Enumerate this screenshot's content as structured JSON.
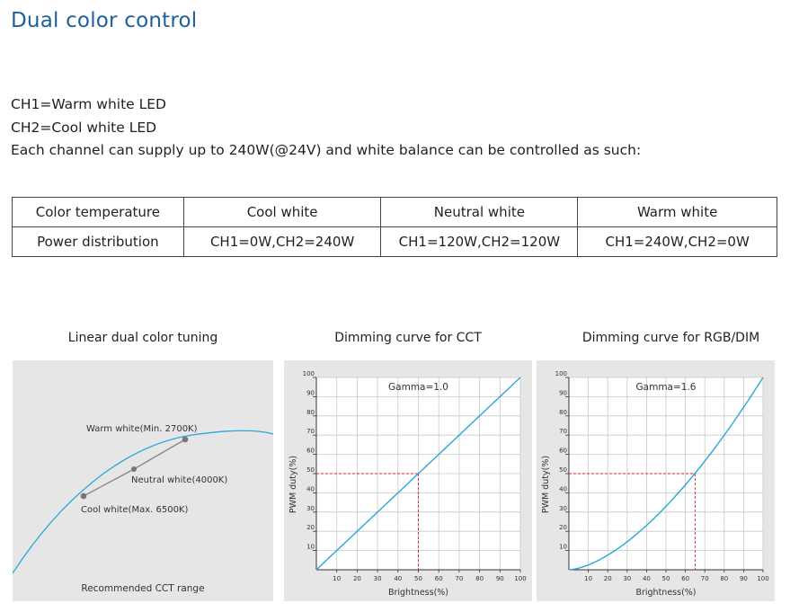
{
  "page": {
    "title": "Dual color control",
    "intro_lines": [
      "CH1=Warm white LED",
      "CH2=Cool white LED",
      "Each channel can supply up to 240W(@24V) and white balance can be controlled as such:"
    ]
  },
  "table": {
    "rows": [
      [
        "Color temperature",
        "Cool white",
        "Neutral white",
        "Warm white"
      ],
      [
        "Power distribution",
        "CH1=0W,CH2=240W",
        "CH1=120W,CH2=120W",
        "CH1=240W,CH2=0W"
      ]
    ]
  },
  "tuning": {
    "title": "Linear dual color tuning",
    "points": [
      "Warm white(Min. 2700K)",
      "Neutral white(4000K)",
      "Cool white(Max. 6500K)"
    ],
    "caption": "Recommended CCT range",
    "colors": {
      "curve": "#2aa6dc",
      "line": "#888888",
      "point": "#777777"
    }
  },
  "chart_data": [
    {
      "type": "line",
      "title": "Dimming curve for CCT",
      "annotation": "Gamma=1.0",
      "xlabel": "Brightness(%)",
      "ylabel": "PWM duty(%)",
      "xlim": [
        0,
        100
      ],
      "ylim": [
        0,
        100
      ],
      "xticks": [
        10,
        20,
        30,
        40,
        50,
        60,
        70,
        80,
        90,
        100
      ],
      "yticks": [
        10,
        20,
        30,
        40,
        50,
        60,
        70,
        80,
        90,
        100
      ],
      "gamma": 1.0,
      "series": [
        {
          "x": [
            0,
            10,
            20,
            30,
            40,
            50,
            60,
            70,
            80,
            90,
            100
          ],
          "values": [
            0,
            10,
            20,
            30,
            40,
            50,
            60,
            70,
            80,
            90,
            100
          ]
        }
      ],
      "reference": {
        "x": 50,
        "y": 50
      },
      "grid": true,
      "colors": {
        "curve": "#2aa6dc",
        "reference": "#d9262b"
      }
    },
    {
      "type": "line",
      "title": "Dimming curve for RGB/DIM",
      "annotation": "Gamma=1.6",
      "xlabel": "Brightness(%)",
      "ylabel": "PWM duty(%)",
      "xlim": [
        0,
        100
      ],
      "ylim": [
        0,
        100
      ],
      "xticks": [
        10,
        20,
        30,
        40,
        50,
        60,
        70,
        80,
        90,
        100
      ],
      "yticks": [
        10,
        20,
        30,
        40,
        50,
        60,
        70,
        80,
        90,
        100
      ],
      "gamma": 1.6,
      "series": [
        {
          "x": [
            0,
            10,
            20,
            30,
            40,
            50,
            60,
            70,
            80,
            90,
            100
          ],
          "values": [
            0,
            2.5,
            7.6,
            14.6,
            23.1,
            33.0,
            44.2,
            56.5,
            70.0,
            84.5,
            100
          ]
        }
      ],
      "reference": {
        "x": 65,
        "y": 50
      },
      "grid": true,
      "colors": {
        "curve": "#2aa6dc",
        "reference": "#d9262b"
      }
    }
  ]
}
